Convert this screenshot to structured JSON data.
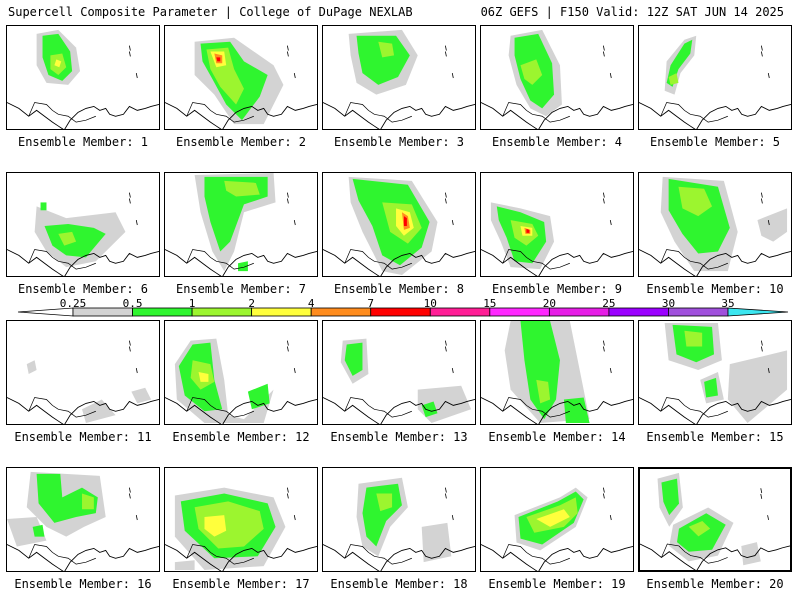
{
  "header": {
    "left": "Supercell Composite Parameter | College of DuPage NEXLAB",
    "right": "06Z GEFS | F150 Valid: 12Z SAT JUN 14 2025"
  },
  "member_label_prefix": "Ensemble Member: ",
  "members": [
    {
      "number": "1"
    },
    {
      "number": "2"
    },
    {
      "number": "3"
    },
    {
      "number": "4"
    },
    {
      "number": "5"
    },
    {
      "number": "6"
    },
    {
      "number": "7"
    },
    {
      "number": "8"
    },
    {
      "number": "9"
    },
    {
      "number": "10"
    },
    {
      "number": "11"
    },
    {
      "number": "12"
    },
    {
      "number": "13"
    },
    {
      "number": "14"
    },
    {
      "number": "15"
    },
    {
      "number": "16"
    },
    {
      "number": "17"
    },
    {
      "number": "18"
    },
    {
      "number": "19"
    },
    {
      "number": "20"
    }
  ],
  "selected_member": "20",
  "colorbar": {
    "levels": [
      "0.25",
      "0.5",
      "1",
      "2",
      "4",
      "7",
      "10",
      "15",
      "20",
      "25",
      "30",
      "35"
    ],
    "colors": [
      "#d3d3d3",
      "#2ff52f",
      "#9cf52f",
      "#ffff3c",
      "#ff8c1e",
      "#ff0000",
      "#ff1e96",
      "#ff28ff",
      "#e61ee6",
      "#9b00ff",
      "#a050dc",
      "#3ce6f0"
    ]
  },
  "fill_colors": {
    "gray": "#d3d3d3",
    "green": "#2ff52f",
    "lime": "#9cf52f",
    "yellow": "#ffff3c",
    "orange": "#ff8c1e",
    "red": "#ff0000"
  }
}
